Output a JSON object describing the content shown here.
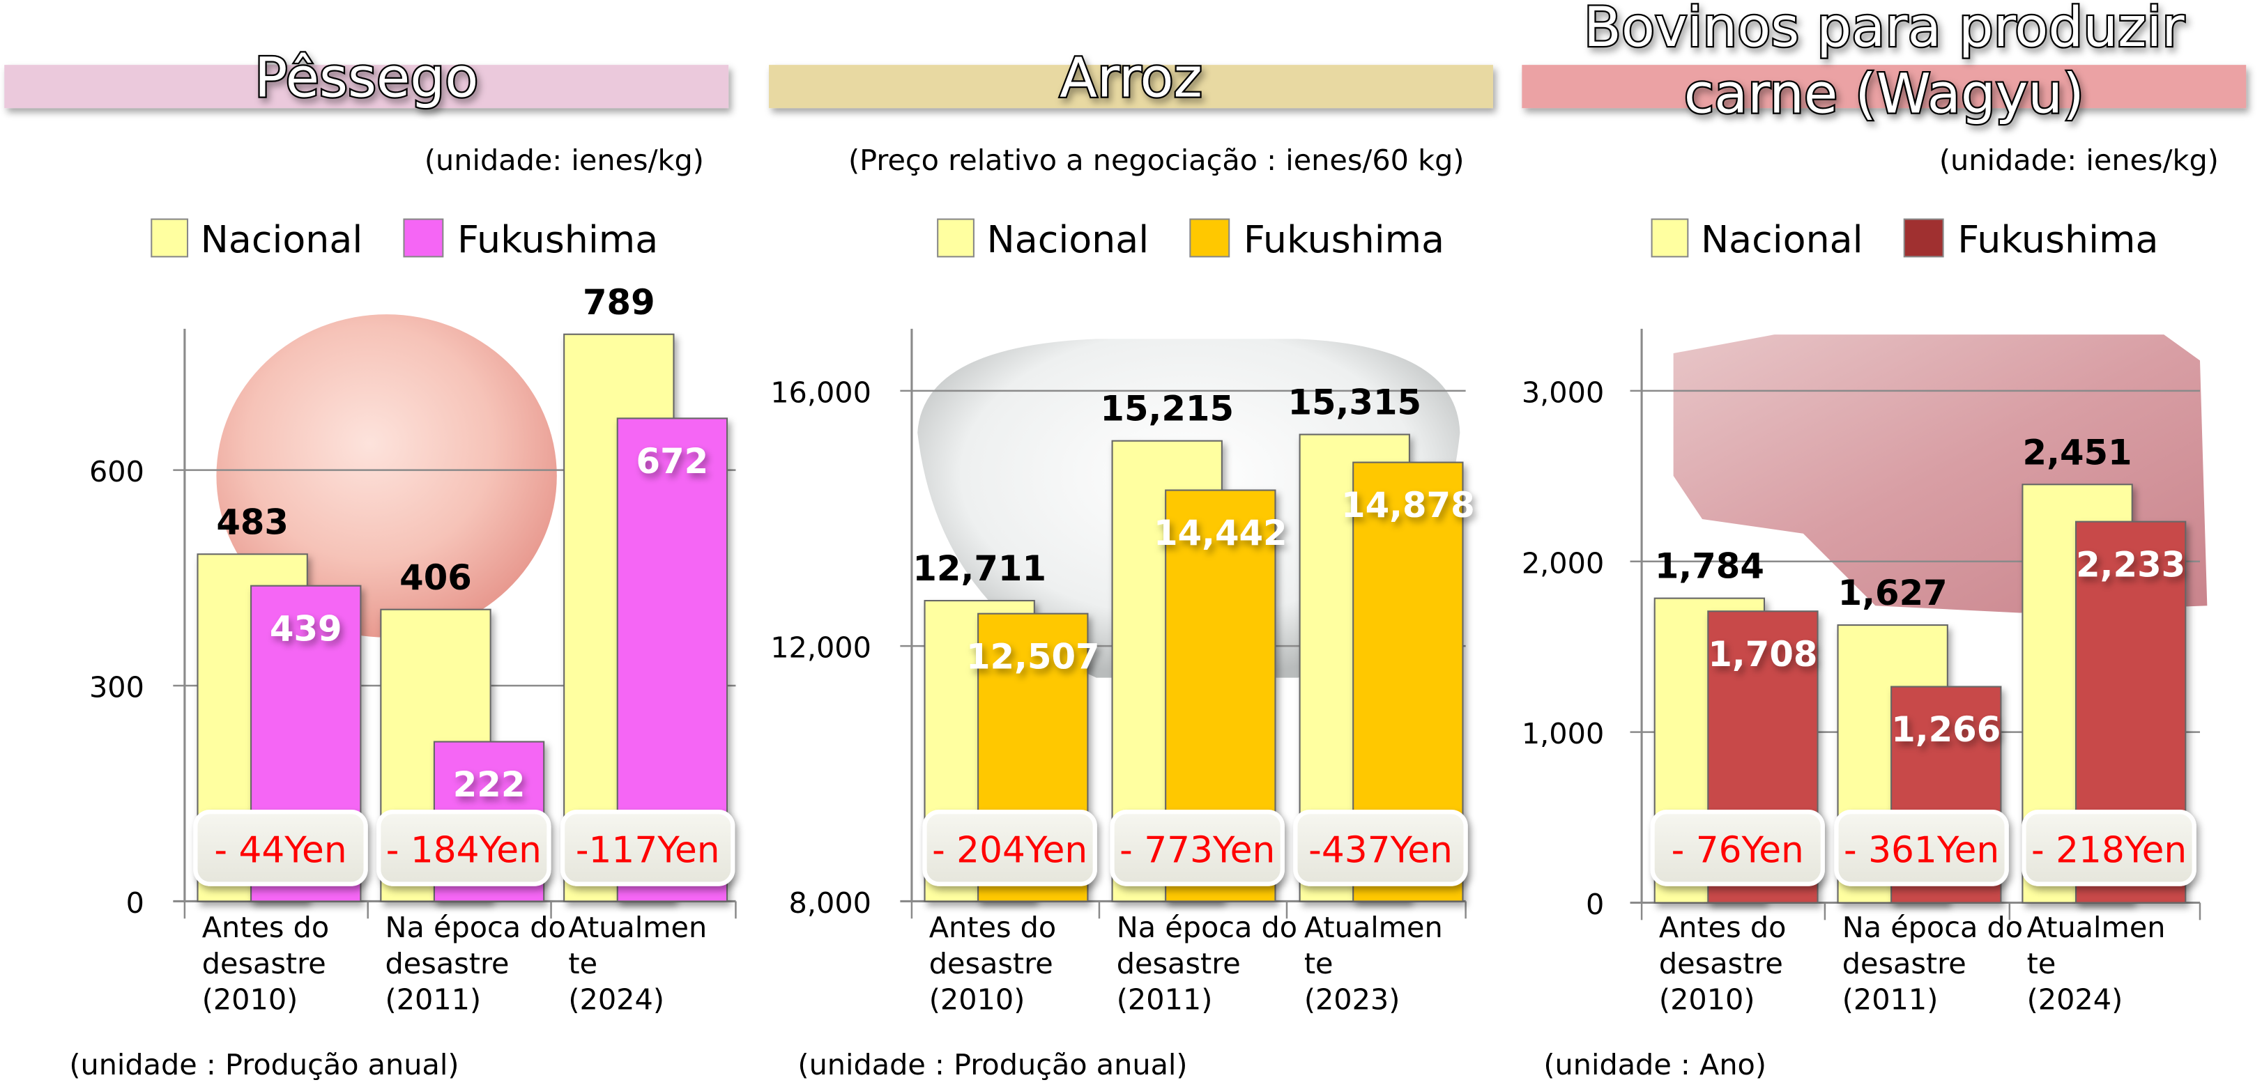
{
  "chart_data": [
    {
      "type": "bar",
      "title": "Pêssego",
      "unit": "(unidade: ienes/kg)",
      "legend": [
        "Nacional",
        "Fukushima"
      ],
      "colors": {
        "Nacional": "#ffffa0",
        "Fukushima": "#f566f5",
        "band": "#ebc9dc"
      },
      "categories": [
        [
          "Antes do",
          "desastre",
          "(2010)"
        ],
        [
          "Na época do",
          "desastre",
          "(2011)"
        ],
        [
          "Atualmen",
          "te",
          "(2024)"
        ]
      ],
      "series": [
        {
          "name": "Nacional",
          "values": [
            483,
            406,
            789
          ],
          "labels": [
            "483",
            "406",
            "789"
          ]
        },
        {
          "name": "Fukushima",
          "values": [
            439,
            222,
            672
          ],
          "labels": [
            "439",
            "222",
            "672"
          ]
        }
      ],
      "differences": [
        "- 44Yen",
        "- 184Yen",
        "-117Yen"
      ],
      "yticks": [
        0,
        300,
        600
      ],
      "ytick_labels": [
        "0",
        "300",
        "600"
      ],
      "ylim": [
        0,
        800
      ],
      "footnote": "(unidade : Produção anual)"
    },
    {
      "type": "bar",
      "title": "Arroz",
      "unit": "(Preço relativo a negociação : ienes/60 kg)",
      "legend": [
        "Nacional",
        "Fukushima"
      ],
      "colors": {
        "Nacional": "#ffffa0",
        "Fukushima": "#ffc800",
        "band": "#e8d9a2"
      },
      "categories": [
        [
          "Antes do",
          "desastre",
          "(2010)"
        ],
        [
          "Na época do",
          "desastre",
          "(2011)"
        ],
        [
          "Atualmen",
          "te",
          "(2023)"
        ]
      ],
      "series": [
        {
          "name": "Nacional",
          "values": [
            12711,
            15215,
            15315
          ],
          "labels": [
            "12,711",
            "15,215",
            "15,315"
          ]
        },
        {
          "name": "Fukushima",
          "values": [
            12507,
            14442,
            14878
          ],
          "labels": [
            "12,507",
            "14,442",
            "14,878"
          ]
        }
      ],
      "differences": [
        "- 204Yen",
        "- 773Yen",
        "-437Yen"
      ],
      "yticks": [
        8000,
        12000,
        16000
      ],
      "ytick_labels": [
        "8,000",
        "12,000",
        "16,000"
      ],
      "ylim": [
        8000,
        17000
      ],
      "footnote": "(unidade : Produção anual)"
    },
    {
      "type": "bar",
      "title": "Bovinos para produzir carne (Wagyu)",
      "title_lines": [
        "Bovinos para produzir",
        "carne (Wagyu)"
      ],
      "unit": "(unidade: ienes/kg)",
      "legend": [
        "Nacional",
        "Fukushima"
      ],
      "colors": {
        "Nacional": "#ffffa0",
        "Fukushima": "#a03030",
        "bar": "#c84848",
        "band": "#eba2a4"
      },
      "categories": [
        [
          "Antes do",
          "desastre",
          "(2010)"
        ],
        [
          "Na época do",
          "desastre",
          "(2011)"
        ],
        [
          "Atualmen",
          "te",
          "(2024)"
        ]
      ],
      "series": [
        {
          "name": "Nacional",
          "values": [
            1784,
            1627,
            2451
          ],
          "labels": [
            "1,784",
            "1,627",
            "2,451"
          ]
        },
        {
          "name": "Fukushima",
          "values": [
            1708,
            1266,
            2233
          ],
          "labels": [
            "1,708",
            "1,266",
            "2,233"
          ]
        }
      ],
      "differences": [
        "- 76Yen",
        "- 361Yen",
        "- 218Yen"
      ],
      "yticks": [
        0,
        1000,
        2000,
        3000
      ],
      "ytick_labels": [
        "0",
        "1,000",
        "2,000",
        "3,000"
      ],
      "ylim": [
        0,
        3200
      ],
      "footnote": "(unidade : Ano)"
    }
  ]
}
